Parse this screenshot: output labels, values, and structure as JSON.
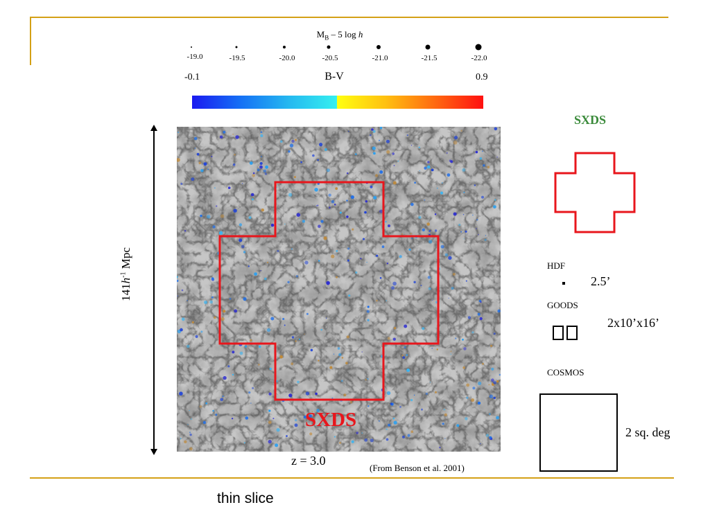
{
  "magnitude_scale": {
    "title": "M_B – 5 log h",
    "title_main": "M",
    "title_sub": "B",
    "title_rest": " – 5 log ",
    "title_h": "h",
    "values": [
      "-19.0",
      "-19.5",
      "-20.0",
      "-20.5",
      "-21.0",
      "-21.5",
      "-22.0"
    ]
  },
  "color_scale": {
    "title": "B-V",
    "min_label": "-0.1",
    "max_label": "0.9",
    "colors": {
      "blue": "#1a1af0",
      "cyan": "#35f0f0",
      "yellow": "#ffff10",
      "red": "#ff1010"
    }
  },
  "simulation": {
    "redshift_label": "z = 3.0",
    "source_label": "(From Benson et al. 2001)",
    "size_label_pre": "141",
    "size_label_h": "h",
    "size_label_sup": "-1",
    "size_label_post": " Mpc",
    "survey_label": "SXDS",
    "survey_color": "#e8161c"
  },
  "legend": {
    "sxds_title": "SXDS",
    "sxds_title_color": "#3a8a3a",
    "hdf_label": "HDF",
    "hdf_size": "2.5’",
    "goods_label": "GOODS",
    "goods_size": "2x10’x16’",
    "cosmos_label": "COSMOS",
    "cosmos_size": "2 sq. deg"
  },
  "slide": {
    "caption": "thin slice",
    "frame_color": "#d4a015"
  }
}
